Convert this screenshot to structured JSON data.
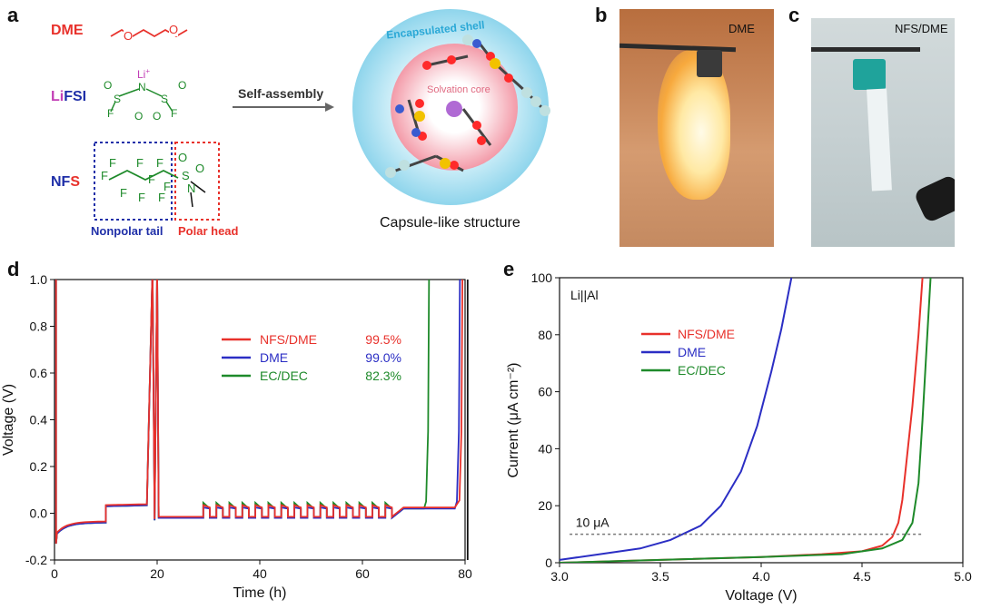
{
  "panels": {
    "a": "a",
    "b": "b",
    "c": "c",
    "d": "d",
    "e": "e"
  },
  "panel_a": {
    "dme_label": "DME",
    "lifsi_prefix": "Li",
    "lifsi_suffix": "FSI",
    "nfs_prefix": "NF",
    "nfs_suffix": "S",
    "arrow_label": "Self-assembly",
    "nonpolar_label": "Nonpolar tail",
    "polar_label": "Polar head",
    "shell_label": "Encapsulated shell",
    "core_label": "Solvation core",
    "capsule_label": "Capsule-like structure",
    "atoms": {
      "F": "F",
      "S": "S",
      "O": "O",
      "N": "N",
      "Li": "Li",
      "plus": "+"
    },
    "colors": {
      "dme": "#e8312b",
      "lifsi": "#c23fb6",
      "nfs": "#1f2fa8",
      "tail_box": "#1f2fa8",
      "head_box": "#e8312b",
      "shell": "#a8def0",
      "core": "#f3a9b3"
    }
  },
  "panel_b": {
    "label": "DME"
  },
  "panel_c": {
    "label": "NFS/DME"
  },
  "chart_data": [
    {
      "type": "line",
      "panel": "d",
      "xlabel": "Time (h)",
      "ylabel": "Voltage (V)",
      "xlim": [
        0,
        80
      ],
      "ylim": [
        -0.2,
        1.0
      ],
      "x_ticks": [
        0,
        20,
        40,
        60,
        80
      ],
      "y_ticks": [
        -0.2,
        0.0,
        0.2,
        0.4,
        0.6,
        0.8,
        1.0
      ],
      "x_tick_labels": [
        "0",
        "20",
        "40",
        "60",
        "80"
      ],
      "y_tick_labels": [
        "-0.2",
        "0.0",
        "0.2",
        "0.4",
        "0.6",
        "0.8",
        "1.0"
      ],
      "legend": [
        {
          "name": "NFS/DME",
          "value": "99.5%",
          "color": "#e8312b"
        },
        {
          "name": "DME",
          "value": "99.0%",
          "color": "#2b2ec4"
        },
        {
          "name": "EC/DEC",
          "value": "82.3%",
          "color": "#1e8a2a"
        }
      ]
    },
    {
      "type": "line",
      "panel": "e",
      "xlabel": "Voltage (V)",
      "ylabel": "Current (μA cm⁻²)",
      "annotation": "Li||Al",
      "threshold_label": "10 μA",
      "threshold": 10,
      "xlim": [
        3.0,
        5.0
      ],
      "ylim": [
        0,
        100
      ],
      "x_ticks": [
        3.0,
        3.5,
        4.0,
        4.5,
        5.0
      ],
      "y_ticks": [
        0,
        20,
        40,
        60,
        80,
        100
      ],
      "x_tick_labels": [
        "3.0",
        "3.5",
        "4.0",
        "4.5",
        "5.0"
      ],
      "y_tick_labels": [
        "0",
        "20",
        "40",
        "60",
        "80",
        "100"
      ],
      "series": [
        {
          "name": "NFS/DME",
          "color": "#e8312b",
          "x": [
            3.0,
            3.5,
            4.0,
            4.3,
            4.5,
            4.6,
            4.65,
            4.68,
            4.7,
            4.72,
            4.75,
            4.78,
            4.8
          ],
          "y": [
            0,
            1,
            2,
            3,
            4,
            6,
            9,
            14,
            22,
            35,
            55,
            80,
            100
          ]
        },
        {
          "name": "DME",
          "color": "#2b2ec4",
          "x": [
            3.0,
            3.2,
            3.4,
            3.55,
            3.7,
            3.8,
            3.9,
            3.98,
            4.05,
            4.1,
            4.15
          ],
          "y": [
            1,
            3,
            5,
            8,
            13,
            20,
            32,
            48,
            67,
            82,
            100
          ]
        },
        {
          "name": "EC/DEC",
          "color": "#1e8a2a",
          "x": [
            3.0,
            3.5,
            4.0,
            4.4,
            4.6,
            4.7,
            4.75,
            4.78,
            4.8,
            4.82,
            4.84
          ],
          "y": [
            0,
            1,
            2,
            3,
            5,
            8,
            14,
            28,
            50,
            75,
            100
          ]
        }
      ]
    }
  ]
}
